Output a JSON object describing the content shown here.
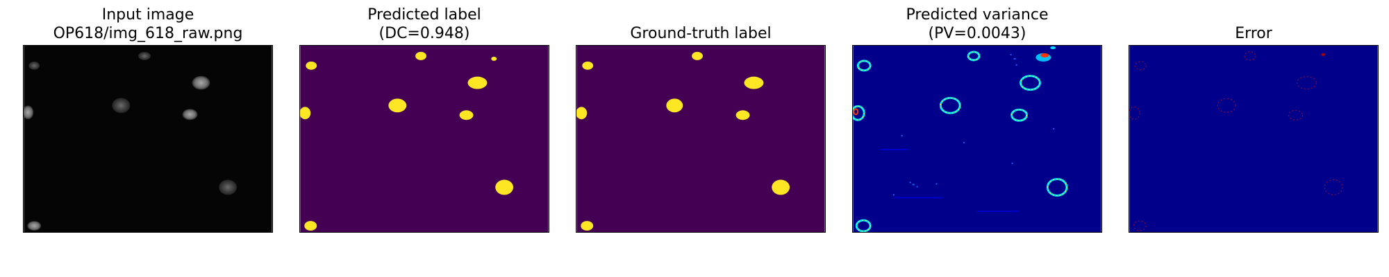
{
  "figure": {
    "panels": [
      {
        "title_line1": "Input image",
        "title_line2": "OP618/img_618_raw.png"
      },
      {
        "title_line1": "Predicted label",
        "title_line2": "(DC=0.948)"
      },
      {
        "title_line1": "",
        "title_line2": "Ground-truth label"
      },
      {
        "title_line1": "Predicted variance",
        "title_line2": "(PV=0.0043)"
      },
      {
        "title_line1": "",
        "title_line2": "Error"
      }
    ],
    "colors": {
      "label_background": "#440154",
      "label_foreground": "#fde725",
      "variance_background": "#00008b",
      "input_background": "#050505",
      "input_nuclei": "#9a9a9a",
      "error_marks": "#b00000"
    }
  }
}
